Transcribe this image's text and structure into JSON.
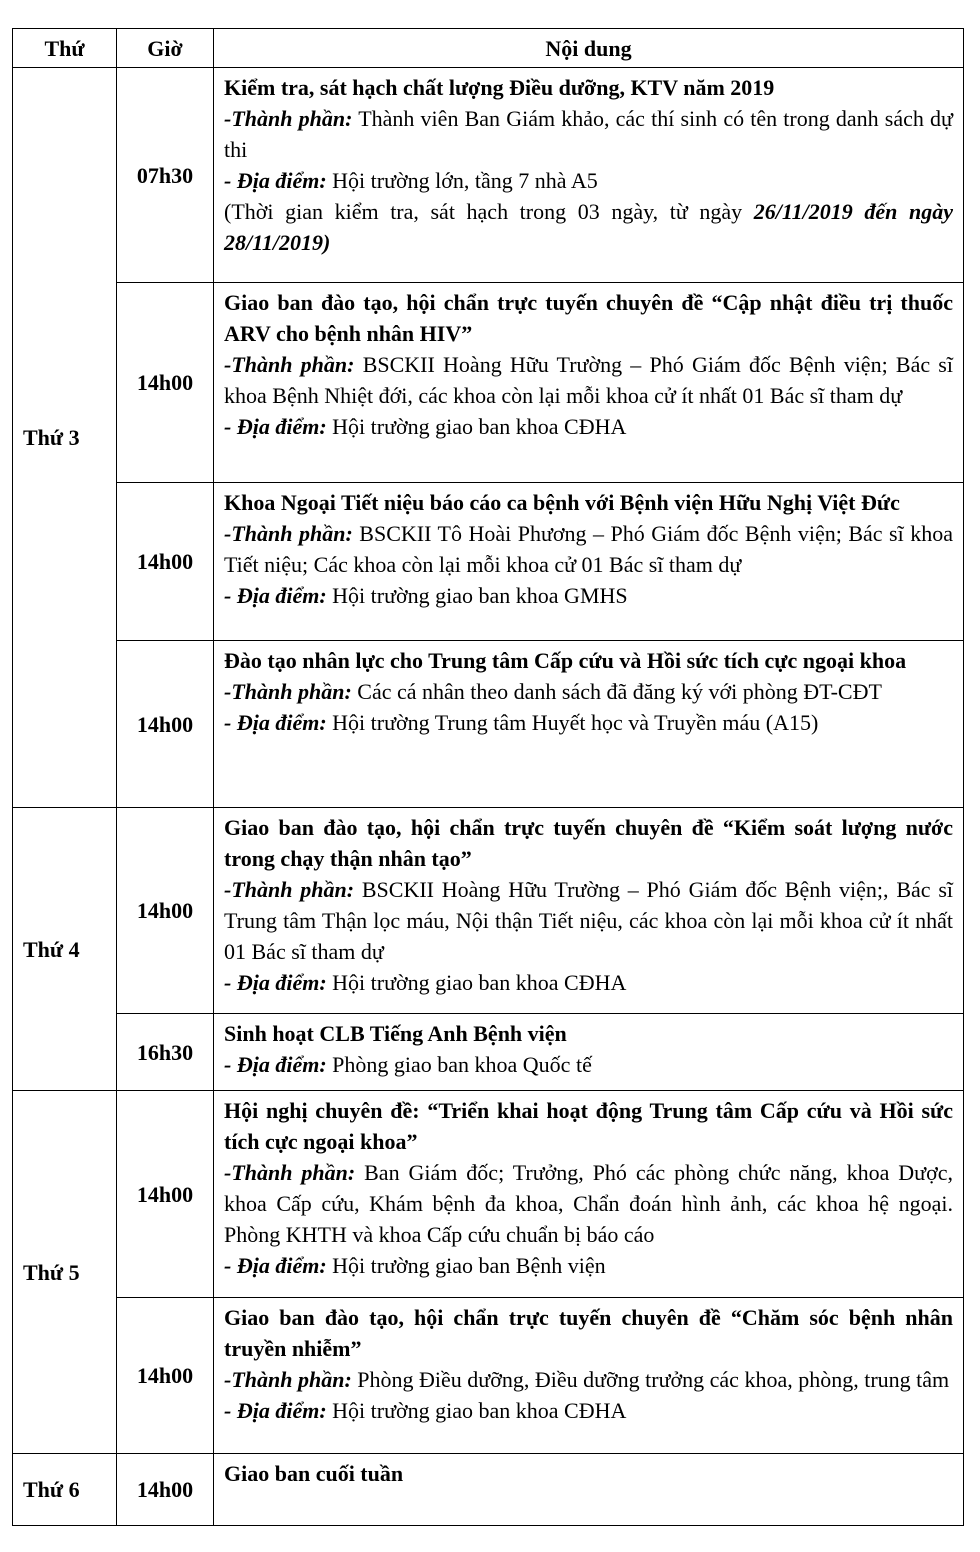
{
  "header": {
    "day": "Thứ",
    "time": "Giờ",
    "content": "Nội dung"
  },
  "days": [
    {
      "day": "Thứ 3",
      "entries": [
        {
          "time": "07h30",
          "title": "Kiểm tra, sát hạch chất lượng Điều dưỡng, KTV năm 2019",
          "participants_label": "-Thành phần:",
          "participants": " Thành viên Ban Giám khảo, các thí sinh có tên trong danh sách dự thi",
          "location_label": "- Địa điểm:",
          "location": " Hội trường lớn, tầng 7 nhà A5",
          "note": "(Thời gian kiểm tra, sát hạch trong 03 ngày, từ ngày ",
          "note_emph": "26/11/2019 đến ngày 28/11/2019)"
        },
        {
          "time": "14h00",
          "title": "Giao ban đào tạo, hội chẩn trực tuyến chuyên đề “Cập nhật điều trị thuốc ARV cho bệnh nhân HIV”",
          "participants_label": "-Thành phần:",
          "participants": " BSCKII Hoàng Hữu Trường – Phó Giám đốc Bệnh viện; Bác sĩ khoa Bệnh Nhiệt đới, các khoa còn lại mỗi khoa cử ít nhất 01 Bác sĩ tham dự",
          "location_label": "- Địa điểm:",
          "location": " Hội trường giao ban khoa CĐHA"
        },
        {
          "time": "14h00",
          "title": "Khoa Ngoại Tiết niệu báo cáo ca bệnh với Bệnh viện Hữu Nghị Việt Đức",
          "participants_label": "-Thành phần:",
          "participants": " BSCKII Tô Hoài Phương  – Phó Giám đốc Bệnh viện; Bác sĩ khoa Tiết niệu; Các khoa còn lại mỗi khoa cử 01 Bác sĩ tham dự",
          "location_label": "- Địa điểm:",
          "location": " Hội trường giao ban khoa GMHS"
        },
        {
          "time": "14h00",
          "title": "Đào tạo nhân lực cho Trung tâm Cấp cứu và Hồi sức tích cực ngoại khoa",
          "participants_label": "-Thành phần:",
          "participants": " Các cá nhân theo danh sách đã đăng ký với phòng ĐT-CĐT",
          "location_label": "- Địa điểm:",
          "location": " Hội trường Trung tâm Huyết học và Truyền máu (A15)"
        }
      ]
    },
    {
      "day": "Thứ 4",
      "entries": [
        {
          "time": "14h00",
          "title": "Giao ban đào tạo, hội chẩn trực tuyến chuyên đề “Kiểm soát lượng nước trong chạy thận nhân tạo”",
          "participants_label": "-Thành phần:",
          "participants": " BSCKII Hoàng Hữu Trường – Phó Giám đốc Bệnh viện;, Bác sĩ Trung tâm Thận lọc máu, Nội thận Tiết niệu, các khoa còn lại mỗi khoa cử ít nhất 01 Bác sĩ tham dự",
          "location_label": "- Địa điểm:",
          "location": " Hội trường giao ban khoa CĐHA"
        },
        {
          "time": "16h30",
          "title": "Sinh hoạt CLB Tiếng Anh Bệnh viện",
          "location_label": "- Địa điểm:",
          "location": " Phòng giao ban khoa Quốc tế"
        }
      ]
    },
    {
      "day": "Thứ 5",
      "entries": [
        {
          "time": "14h00",
          "title": "Hội nghị chuyên đề: “Triển khai hoạt động Trung tâm Cấp cứu và Hồi sức tích cực ngoại khoa”",
          "participants_label": "-Thành phần:",
          "participants": " Ban Giám đốc; Trưởng, Phó các phòng chức năng, khoa Dược, khoa Cấp cứu, Khám bệnh đa khoa, Chẩn đoán hình ảnh, các khoa hệ ngoại. Phòng KHTH và khoa Cấp cứu chuẩn bị báo cáo",
          "location_label": "- Địa điểm:",
          "location": " Hội trường giao ban Bệnh viện"
        },
        {
          "time": "14h00",
          "title": "Giao ban đào tạo, hội chẩn trực tuyến chuyên đề “Chăm sóc bệnh nhân truyền nhiễm”",
          "participants_label": "-Thành phần:",
          "participants": " Phòng Điều dưỡng, Điều dưỡng trưởng các khoa, phòng, trung tâm",
          "location_label": "- Địa điểm:",
          "location": " Hội trường giao ban khoa CĐHA"
        }
      ]
    },
    {
      "day": "Thứ 6",
      "entries": [
        {
          "time": "14h00",
          "title": "Giao ban cuối tuần"
        }
      ]
    }
  ]
}
